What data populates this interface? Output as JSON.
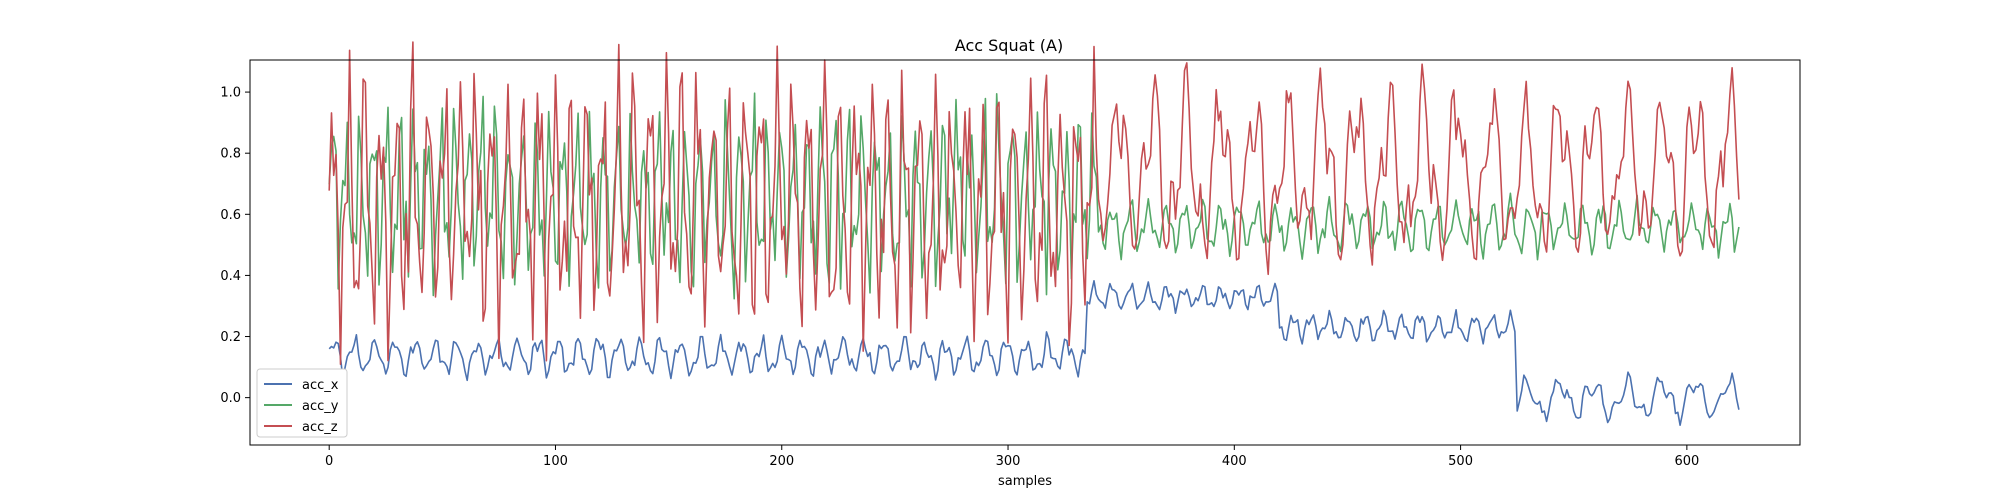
{
  "chart_data": {
    "type": "line",
    "title": "Acc Squat (A)",
    "xlabel": "samples",
    "ylabel": "",
    "xlim": [
      -35,
      650
    ],
    "ylim": [
      -0.155,
      1.105
    ],
    "xticks": [
      0,
      100,
      200,
      300,
      400,
      500,
      600
    ],
    "yticks": [
      0.0,
      0.2,
      0.4,
      0.6,
      0.8,
      1.0
    ],
    "legend_position": "lower-left",
    "grid": false,
    "n_points": 624,
    "series": [
      {
        "name": "acc_x",
        "color": "#4c72b0",
        "segments": [
          {
            "start": 0,
            "end": 335,
            "base": 0.135,
            "amp": 0.045,
            "period": 9
          },
          {
            "start": 335,
            "end": 420,
            "base": 0.33,
            "amp": 0.03,
            "period": 8
          },
          {
            "start": 420,
            "end": 525,
            "base": 0.23,
            "amp": 0.035,
            "period": 8
          },
          {
            "start": 525,
            "end": 624,
            "base": -0.005,
            "amp": 0.05,
            "period": 15
          }
        ]
      },
      {
        "name": "acc_y",
        "color": "#55a868",
        "segments": [
          {
            "start": 0,
            "end": 340,
            "base": 0.66,
            "amp": 0.2,
            "period": 6
          },
          {
            "start": 340,
            "end": 624,
            "base": 0.56,
            "amp": 0.06,
            "period": 8
          }
        ]
      },
      {
        "name": "acc_z",
        "color": "#c44e52",
        "segments": [
          {
            "start": 0,
            "end": 340,
            "base": 0.64,
            "amp": 0.3,
            "period": 7
          },
          {
            "start": 340,
            "end": 624,
            "base": 0.74,
            "amp": 0.2,
            "period": 15
          }
        ]
      }
    ]
  }
}
